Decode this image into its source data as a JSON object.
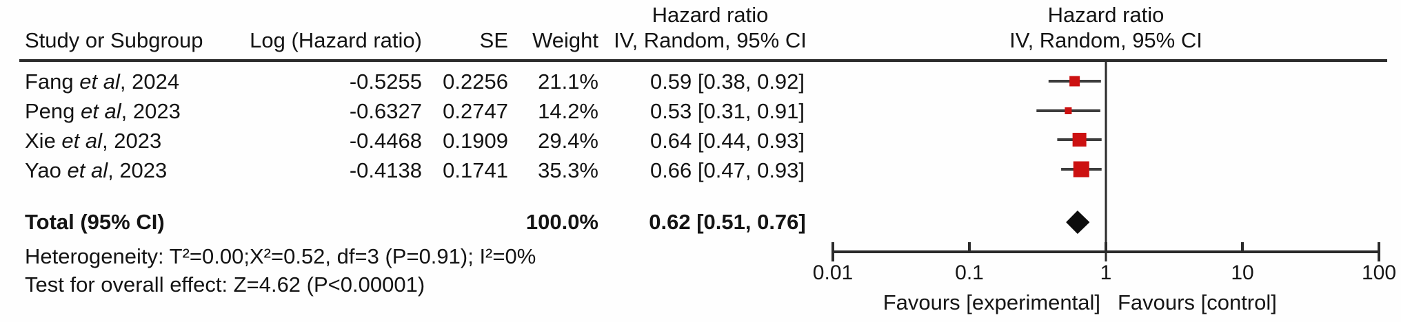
{
  "table": {
    "header": {
      "study": "Study or Subgroup",
      "log_hr": "Log (Hazard ratio)",
      "se": "SE",
      "weight": "Weight",
      "hr_line1": "Hazard ratio",
      "hr_line2": "IV, Random, 95% CI"
    },
    "plot_header": {
      "line1": "Hazard ratio",
      "line2": "IV, Random, 95% CI"
    },
    "rows": [
      {
        "name_prefix": "Fang ",
        "name_italic": "et al",
        "name_suffix": ", 2024",
        "log_hr": "-0.5255",
        "se": "0.2256",
        "weight": "21.1%",
        "ci_text": "0.59 [0.38, 0.92]"
      },
      {
        "name_prefix": "Peng ",
        "name_italic": "et al",
        "name_suffix": ", 2023",
        "log_hr": "-0.6327",
        "se": "0.2747",
        "weight": "14.2%",
        "ci_text": "0.53 [0.31, 0.91]"
      },
      {
        "name_prefix": "Xie ",
        "name_italic": "et al",
        "name_suffix": ", 2023",
        "log_hr": "-0.4468",
        "se": "0.1909",
        "weight": "29.4%",
        "ci_text": "0.64 [0.44, 0.93]"
      },
      {
        "name_prefix": "Yao ",
        "name_italic": "et al",
        "name_suffix": ", 2023",
        "log_hr": "-0.4138",
        "se": "0.1741",
        "weight": "35.3%",
        "ci_text": "0.66 [0.47, 0.93]"
      }
    ],
    "total": {
      "label": "Total (95% CI)",
      "weight": "100.0%",
      "ci_text": "0.62 [0.51, 0.76]"
    },
    "footnotes": {
      "heterogeneity": "Heterogeneity: T²=0.00;X²=0.52, df=3 (P=0.91); I²=0%",
      "overall_effect": "Test for overall effect: Z=4.62 (P<0.00001)"
    }
  },
  "chart_data": {
    "type": "forest",
    "effect_measure": "Hazard ratio",
    "model": "IV, Random, 95% CI",
    "x_scale": "log10",
    "x_ticks": [
      0.01,
      0.1,
      1,
      10,
      100
    ],
    "x_tick_labels": [
      "0.01",
      "0.1",
      "1",
      "10",
      "100"
    ],
    "null_line_x": 1,
    "xlabel_left": "Favours [experimental]",
    "xlabel_right": "Favours [control]",
    "marker_color": "#cc1111",
    "line_color": "#3c3c3c",
    "diamond_color": "#0d0d0d",
    "studies": [
      {
        "label": "Fang et al, 2024",
        "log_hr": -0.5255,
        "se": 0.2256,
        "weight_pct": 21.1,
        "hr": 0.59,
        "ci_low": 0.38,
        "ci_high": 0.92
      },
      {
        "label": "Peng et al, 2023",
        "log_hr": -0.6327,
        "se": 0.2747,
        "weight_pct": 14.2,
        "hr": 0.53,
        "ci_low": 0.31,
        "ci_high": 0.91
      },
      {
        "label": "Xie et al, 2023",
        "log_hr": -0.4468,
        "se": 0.1909,
        "weight_pct": 29.4,
        "hr": 0.64,
        "ci_low": 0.44,
        "ci_high": 0.93
      },
      {
        "label": "Yao et al, 2023",
        "log_hr": -0.4138,
        "se": 0.1741,
        "weight_pct": 35.3,
        "hr": 0.66,
        "ci_low": 0.47,
        "ci_high": 0.93
      }
    ],
    "total": {
      "label": "Total (95% CI)",
      "weight_pct": 100.0,
      "hr": 0.62,
      "ci_low": 0.51,
      "ci_high": 0.76,
      "z": 4.62,
      "p": "P<0.00001",
      "i_squared": "0%"
    }
  }
}
